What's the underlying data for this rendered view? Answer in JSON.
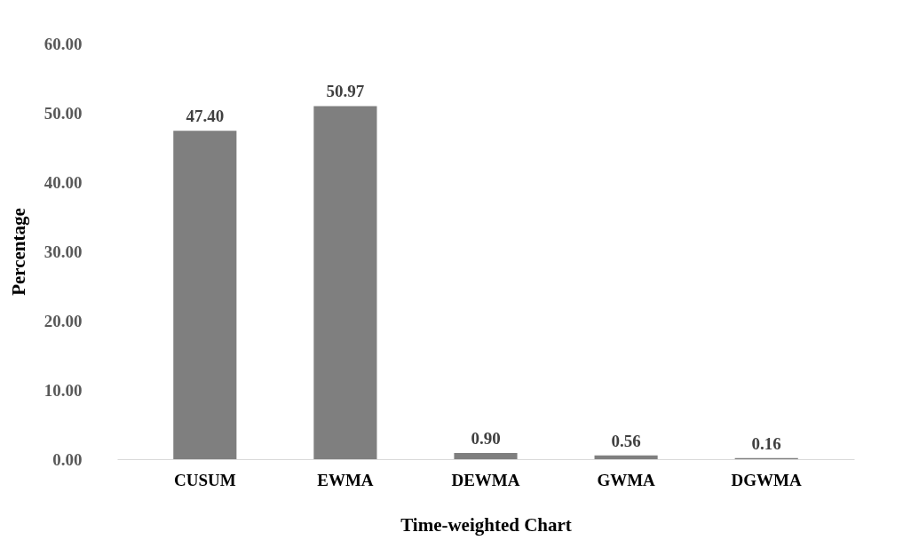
{
  "chart_data": {
    "type": "bar",
    "xlabel": "Time-weighted Chart",
    "ylabel": "Percentage",
    "categories": [
      "CUSUM",
      "EWMA",
      "DEWMA",
      "GWMA",
      "DGWMA"
    ],
    "values": [
      47.4,
      50.97,
      0.9,
      0.56,
      0.16
    ],
    "value_labels": [
      "47.40",
      "50.97",
      "0.90",
      "0.56",
      "0.16"
    ],
    "color": "#7f7f7f",
    "ylim": [
      0,
      60
    ],
    "yticks": [
      {
        "value": 0,
        "label": "0.00"
      },
      {
        "value": 10,
        "label": "10.00"
      },
      {
        "value": 20,
        "label": "20.00"
      },
      {
        "value": 30,
        "label": "30.00"
      },
      {
        "value": 40,
        "label": "40.00"
      },
      {
        "value": 50,
        "label": "50.00"
      },
      {
        "value": 60,
        "label": "60.00"
      }
    ],
    "grid": false
  }
}
